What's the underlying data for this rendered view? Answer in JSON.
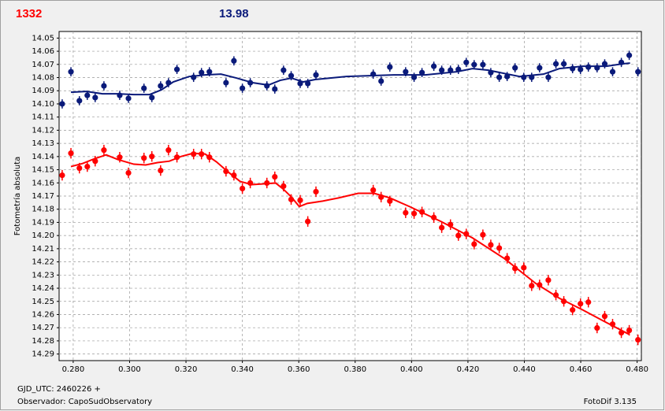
{
  "chart_data": {
    "type": "scatter",
    "title": "1332",
    "subtitle": "13.98",
    "ylabel": "Fotometría absoluta",
    "footer_left": [
      "GJD_UTC: 2460226 +",
      "Observador: CapoSudObservatory"
    ],
    "footer_right": "FotoDif 3.135",
    "xlim": [
      0.275,
      0.4815
    ],
    "ylim": [
      14.045,
      14.295
    ],
    "y_inverted": true,
    "grid": true,
    "xticks": [
      {
        "value": 0.28,
        "label": "0.280"
      },
      {
        "value": 0.3,
        "label": "0.300"
      },
      {
        "value": 0.32,
        "label": "0.320"
      },
      {
        "value": 0.34,
        "label": "0.340"
      },
      {
        "value": 0.36,
        "label": "0.360"
      },
      {
        "value": 0.38,
        "label": "0.380"
      },
      {
        "value": 0.4,
        "label": "0.400"
      },
      {
        "value": 0.42,
        "label": "0.420"
      },
      {
        "value": 0.44,
        "label": "0.440"
      },
      {
        "value": 0.46,
        "label": "0.460"
      },
      {
        "value": 0.48,
        "label": "0.480"
      }
    ],
    "yticks": [
      14.05,
      14.06,
      14.07,
      14.08,
      14.09,
      {
        "value": 14.1,
        "label": "14.10"
      },
      14.11,
      14.12,
      14.13,
      14.14,
      14.15,
      14.16,
      14.17,
      14.18,
      14.19,
      {
        "value": 14.2,
        "label": "14.20"
      },
      14.21,
      14.22,
      14.23,
      14.24,
      14.25,
      14.26,
      14.27,
      14.28,
      14.29
    ],
    "series": [
      {
        "color": "#0a1a7a",
        "error": 0.0035,
        "x": [
          0.2761,
          0.2792,
          0.2822,
          0.285,
          0.2878,
          0.2909,
          0.2965,
          0.2996,
          0.3051,
          0.3079,
          0.311,
          0.3138,
          0.3168,
          0.3227,
          0.3255,
          0.3283,
          0.3342,
          0.337,
          0.34,
          0.3428,
          0.3487,
          0.3515,
          0.3546,
          0.3573,
          0.3605,
          0.3632,
          0.3661,
          0.3864,
          0.3892,
          0.3923,
          0.3979,
          0.4009,
          0.4037,
          0.4079,
          0.4107,
          0.4138,
          0.4166,
          0.4194,
          0.4222,
          0.4253,
          0.4281,
          0.4311,
          0.4339,
          0.4367,
          0.4398,
          0.4426,
          0.4454,
          0.4485,
          0.4512,
          0.454,
          0.4571,
          0.4599,
          0.4627,
          0.4658,
          0.4685,
          0.4713,
          0.4744,
          0.4772,
          0.4803
        ],
        "values": [
          14.1,
          14.0756,
          14.0976,
          14.0935,
          14.0952,
          14.0863,
          14.0935,
          14.0958,
          14.0881,
          14.0952,
          14.0863,
          14.0839,
          14.0738,
          14.0798,
          14.0762,
          14.0756,
          14.0839,
          14.0673,
          14.0881,
          14.0839,
          14.0863,
          14.0887,
          14.0744,
          14.0786,
          14.0845,
          14.0845,
          14.078,
          14.0774,
          14.0827,
          14.072,
          14.0756,
          14.0798,
          14.0762,
          14.0714,
          14.0744,
          14.0744,
          14.0738,
          14.0685,
          14.0702,
          14.0702,
          14.0762,
          14.0798,
          14.0792,
          14.0726,
          14.0798,
          14.0798,
          14.0726,
          14.0798,
          14.0696,
          14.0696,
          14.0732,
          14.0738,
          14.072,
          14.0726,
          14.0696,
          14.0756,
          14.0685,
          14.0631,
          14.0756
        ],
        "fit": {
          "x": [
            0.2792,
            0.2847,
            0.2903,
            0.2959,
            0.3015,
            0.3071,
            0.3113,
            0.3155,
            0.3211,
            0.3268,
            0.3324,
            0.338,
            0.3436,
            0.3492,
            0.3534,
            0.3574,
            0.3616,
            0.3658,
            0.3769,
            0.3937,
            0.4049,
            0.416,
            0.4216,
            0.4272,
            0.4384,
            0.4468,
            0.4524,
            0.4607,
            0.4691,
            0.4747,
            0.4775
          ],
          "values": [
            14.0911,
            14.0905,
            14.0923,
            14.0923,
            14.0929,
            14.0929,
            14.0893,
            14.0833,
            14.0792,
            14.078,
            14.0774,
            14.0804,
            14.0839,
            14.0857,
            14.0821,
            14.0804,
            14.0833,
            14.0815,
            14.0792,
            14.078,
            14.078,
            14.0756,
            14.0732,
            14.0744,
            14.0792,
            14.0774,
            14.0732,
            14.0714,
            14.0714,
            14.0696,
            14.069
          ]
        }
      },
      {
        "color": "#ff0000",
        "error": 0.004,
        "x": [
          0.2761,
          0.2792,
          0.2822,
          0.285,
          0.2878,
          0.2909,
          0.2965,
          0.2996,
          0.3051,
          0.3079,
          0.311,
          0.3138,
          0.3168,
          0.3227,
          0.3255,
          0.3283,
          0.3342,
          0.337,
          0.34,
          0.3428,
          0.3487,
          0.3515,
          0.3546,
          0.3573,
          0.3605,
          0.3632,
          0.3661,
          0.3864,
          0.3892,
          0.3923,
          0.3979,
          0.4009,
          0.4037,
          0.4079,
          0.4107,
          0.4138,
          0.4166,
          0.4194,
          0.4222,
          0.4253,
          0.4281,
          0.4311,
          0.4339,
          0.4367,
          0.4398,
          0.4426,
          0.4454,
          0.4485,
          0.4512,
          0.454,
          0.4571,
          0.4599,
          0.4627,
          0.4658,
          0.4685,
          0.4713,
          0.4744,
          0.4772,
          0.4803
        ],
        "values": [
          14.1542,
          14.1375,
          14.1488,
          14.1476,
          14.1435,
          14.1351,
          14.1405,
          14.1524,
          14.1411,
          14.1399,
          14.1506,
          14.1351,
          14.1405,
          14.1381,
          14.1381,
          14.1405,
          14.1512,
          14.1542,
          14.1643,
          14.1601,
          14.1601,
          14.1554,
          14.1625,
          14.1726,
          14.1732,
          14.1893,
          14.1667,
          14.1655,
          14.1708,
          14.1738,
          14.1827,
          14.1833,
          14.1821,
          14.1863,
          14.194,
          14.1917,
          14.2,
          14.1988,
          14.2065,
          14.1994,
          14.2071,
          14.2095,
          14.2173,
          14.225,
          14.2244,
          14.2381,
          14.2375,
          14.2339,
          14.2452,
          14.25,
          14.2565,
          14.2518,
          14.2506,
          14.2702,
          14.2613,
          14.2673,
          14.2738,
          14.272,
          14.2792
        ],
        "fit": {
          "x": [
            0.2792,
            0.2834,
            0.2875,
            0.2917,
            0.2959,
            0.3015,
            0.3057,
            0.3099,
            0.3141,
            0.3183,
            0.3225,
            0.3268,
            0.3308,
            0.335,
            0.3392,
            0.3434,
            0.3476,
            0.3518,
            0.3546,
            0.3574,
            0.3602,
            0.363,
            0.3685,
            0.3741,
            0.3811,
            0.3867,
            0.3923,
            0.3993,
            0.4104,
            0.4216,
            0.4328,
            0.444,
            0.4524,
            0.4607,
            0.4691,
            0.4771
          ],
          "values": [
            14.1476,
            14.1452,
            14.1417,
            14.1387,
            14.1423,
            14.1458,
            14.1464,
            14.1446,
            14.1435,
            14.1399,
            14.1375,
            14.1381,
            14.144,
            14.1518,
            14.1589,
            14.1613,
            14.1607,
            14.1601,
            14.1649,
            14.1708,
            14.178,
            14.1756,
            14.1738,
            14.1714,
            14.1679,
            14.1679,
            14.1714,
            14.178,
            14.1893,
            14.2018,
            14.2173,
            14.2363,
            14.2476,
            14.2565,
            14.2661,
            14.275
          ]
        }
      }
    ]
  }
}
